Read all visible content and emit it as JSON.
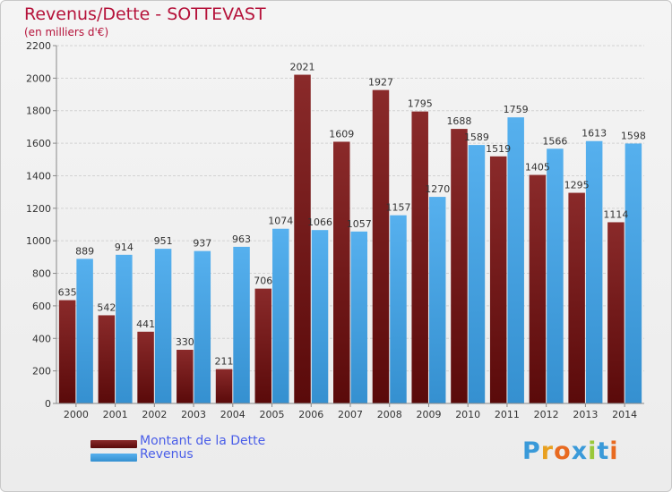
{
  "chart_data": {
    "type": "bar",
    "title": "Revenus/Dette - SOTTEVAST",
    "subtitle": "(en milliers d'€)",
    "categories": [
      "2000",
      "2001",
      "2002",
      "2003",
      "2004",
      "2005",
      "2006",
      "2007",
      "2008",
      "2009",
      "2010",
      "2011",
      "2012",
      "2013",
      "2014"
    ],
    "series": [
      {
        "name": "Montant de la Dette",
        "color": "#7a1a1a",
        "values": [
          635,
          542,
          441,
          330,
          211,
          706,
          2021,
          1609,
          1927,
          1795,
          1688,
          1519,
          1405,
          1295,
          1114
        ],
        "labels": [
          "635",
          "542",
          "441",
          "330",
          "211",
          "706",
          "2021",
          "1609",
          "1927",
          "1795",
          "1688",
          "1519",
          "1405",
          "1295",
          "1114"
        ]
      },
      {
        "name": "Revenus",
        "color": "#4ba6e8",
        "values": [
          889,
          914,
          951,
          937,
          963,
          1074,
          1066,
          1057,
          1157,
          1270,
          1589,
          1759,
          1566,
          1613,
          1598
        ],
        "labels": [
          "889",
          "914",
          "951",
          "937",
          "963",
          "1074",
          "1066",
          "1057",
          "1157",
          "1270",
          "1589",
          "1759",
          "1566",
          "1613",
          "1598"
        ]
      }
    ],
    "ylim": [
      0,
      2200
    ],
    "yticks": [
      0,
      200,
      400,
      600,
      800,
      1000,
      1200,
      1400,
      1600,
      1800,
      2000,
      2200
    ],
    "grid": true,
    "legend": "bottom-left"
  },
  "legend": {
    "debt": "Montant de la Dette",
    "revenue": "Revenus"
  },
  "logo": {
    "text": "Proxiti",
    "letters": [
      "P",
      "r",
      "o",
      "x",
      "i",
      "t",
      "i"
    ],
    "colors": [
      "#3a9ad9",
      "#e8a020",
      "#e86a20",
      "#3a9ad9",
      "#9ac83a",
      "#3a9ad9",
      "#e86a20"
    ]
  }
}
